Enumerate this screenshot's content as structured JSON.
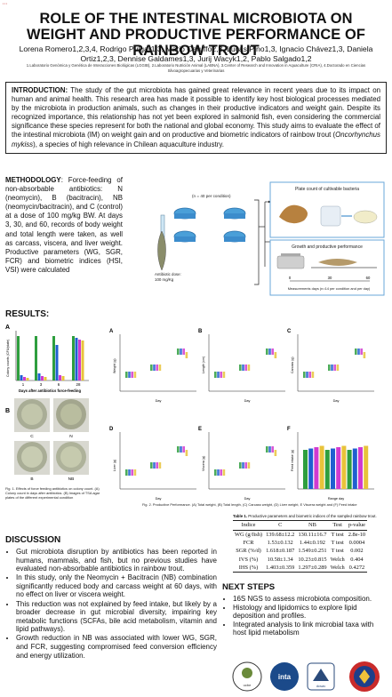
{
  "title": "ROLE OF THE INTESTINAL MICROBIOTA ON WEIGHT AND PRODUCTIVE PERFORMANCE OF RAINBOW TROUT",
  "authors": "Lorena Romero1,2,3,4, Rodrigo Pulgar1,3, Mario Caruffo2,3, Lucas Pino1,3, Ignacio Chávez1,3, Daniela Ortiz1,2,3, Dennise Galdames1,3, Jurij Wacyk1,2, Pablo Salgado1,2",
  "affiliations": "1.Laboratorio Genómica y Genética de Interacciones Biológicas (LGGIB), 2.Laboratorio Nutrición Animal (LABNA), 3.Center of Research and Innovation in Aquaculture (CRIA), 4.Doctorado en Ciencias Silvoagropecuarias y Veterinarias",
  "intro": {
    "label": "INTRODUCTION:",
    "text": "The study of the gut microbiota has gained great relevance in recent years due to its impact on human and animal health. This research area has made it possible to identify key host biological processes mediated by the microbiota in production animals, such as changes in their productive indicators and weight gain. Despite its recognized importance, this relationship has not yet been explored in salmonid fish, even considering the commercial significance these species represent for both the national and global economy. This study aims to evaluate the effect of the intestinal microbiota (IM) on weight gain and on productive and biometric indicators of rainbow trout (",
    "species": "Oncorhynchus mykiss",
    "tail": "), a species of high relevance in Chilean aquaculture industry."
  },
  "methodology": {
    "label": "METHODOLOGY",
    "text": ": Force-feeding of non-absorbable antibiotics: N (neomycin), B (bacitracin), NB (neomycin/bacitracin), and C (control) at a dose of 100 mg/kg BW. At days 3, 30, and 60, records of body weight and total length were taken, as well as carcass, viscera, and liver weight. Productive parameters (WG, SGR, FCR) and biometric indices (HSI, VSI) were calculated"
  },
  "diagram": {
    "n_label": "(n = 40 per condition)",
    "antibiotic_label": "Antibiotic dose:",
    "antibiotic_dose": "100 mg/Kg",
    "plate_count": "Plate count of cultivable bacteria",
    "growth": "Growth and productive performance",
    "measure_caption": "Measurements days (n=14 per condition and per day)",
    "days": [
      "0",
      "30",
      "60"
    ]
  },
  "results": {
    "heading": "RESULTS:",
    "panel_a": "A",
    "panel_b": "B",
    "colony_ylabel": "Colony counts (CFU/plate)",
    "colony_xlabel": "Days after antibiotics force-feeding",
    "colony_days": [
      "1",
      "3",
      "6",
      "28"
    ],
    "plates": [
      "C",
      "N",
      "B",
      "NB"
    ],
    "fig1_caption": "Fig. 1. Effects of force feeding antibiotics on colony count. (A) Colony count in days after antibiotics. (B) Images of TSA agar plates of the different experimental condition",
    "fig2_caption": "Fig. 2. Productive Performance. (A) Total weight, (B) Total length, (C) Carcass weight, (D) Liver weight, E Viscera weight and (F) Feed intake",
    "perf_panels": [
      {
        "label": "A",
        "ylabel": "Weight (g)",
        "xlabel": "Day"
      },
      {
        "label": "B",
        "ylabel": "Length (cm)",
        "xlabel": "Day"
      },
      {
        "label": "C",
        "ylabel": "Carcass (g)",
        "xlabel": "Day"
      },
      {
        "label": "D",
        "ylabel": "Liver (g)",
        "xlabel": "Day"
      },
      {
        "label": "E",
        "ylabel": "Viscera (g)",
        "xlabel": "Day"
      },
      {
        "label": "F",
        "ylabel": "Feed intake (g)",
        "xlabel": "Range day"
      }
    ],
    "legend": [
      "C",
      "B",
      "N",
      "NB"
    ]
  },
  "table": {
    "caption_bold": "Table 1.",
    "caption": "Productive parameters and biometric indices of the sampled rainbow trout.",
    "headers": [
      "Indice",
      "C",
      "NB",
      "Test",
      "p-value"
    ],
    "rows": [
      [
        "WG (g/fish)",
        "139.68±12.2",
        "130.11±16.7",
        "T test",
        "2.8e-10"
      ],
      [
        "FCR",
        "1.53±0.132",
        "1.44±0.192",
        "T test",
        "0.0004"
      ],
      [
        "SGR (%/d)",
        "1.618±0.187",
        "1.549±0.251",
        "T test",
        "0.002"
      ],
      [
        "IVS (%)",
        "10.58±1.34",
        "10.23±0.815",
        "Welch",
        "0.404"
      ],
      [
        "IHS (%)",
        "1.403±0.359",
        "1.297±0.289",
        "Welch",
        "0.4272"
      ]
    ]
  },
  "discussion": {
    "heading": "DISCUSSION",
    "items": [
      "Gut microbiota disruption by antibiotics has been reported in humans, mammals, and fish, but no previous studies have evaluated non-absorbable antibiotics in rainbow trout.",
      "In this study, only the Neomycin + Bacitracin (NB) combination significantly reduced body and carcass weight at 60 days, with no effect on liver or viscera weight.",
      "This reduction was not explained by feed intake, but likely by a broader decrease in gut microbial diversity, impairing key metabolic functions (SCFAs, bile acid metabolism, vitamin and lipid pathways).",
      "Growth reduction in NB was associated with lower WG, SGR, and FCR, suggesting compromised feed conversion efficiency and energy utilization."
    ]
  },
  "next_steps": {
    "heading": "NEXT STEPS",
    "items": [
      "16S NGS to assess microbiota composition.",
      "Histology and lipidomics to explore lipid deposition and profiles.",
      "Integrated analysis to link microbial taxa with host lipid metabolism"
    ]
  },
  "logos": [
    "ucbe",
    "inta",
    "dcsav"
  ],
  "colors": {
    "C": "#2e9e3e",
    "B": "#1f5fd0",
    "N": "#d03ad0",
    "NB": "#e8c33a",
    "accent_blue": "#6aa7d8"
  }
}
